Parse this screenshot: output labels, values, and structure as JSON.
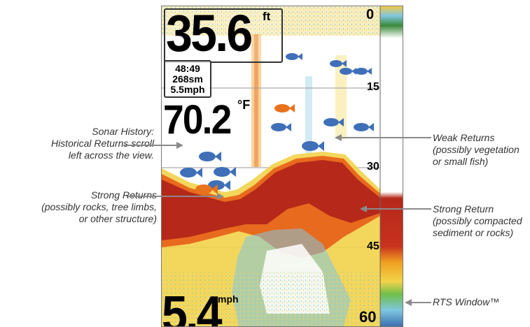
{
  "display": {
    "depth_value": "35.6",
    "depth_unit": "ft",
    "info_lines": [
      "48:49",
      "268sm",
      "5.5mph"
    ],
    "temp_value": "70.2",
    "temp_unit": "°F",
    "speed_value": "5.4",
    "speed_unit": "mph",
    "depth_scale": [
      "0",
      "15",
      "30",
      "45",
      "60"
    ]
  },
  "callouts": {
    "sonar_history": [
      "Sonar History:",
      "Historical Returns scroll",
      "left across the view."
    ],
    "strong_returns": [
      "Strong Returns",
      "(possibly rocks, tree limbs,",
      "or other structure)"
    ],
    "weak_returns": [
      "Weak Returns",
      "(possibly vegetation",
      "or small fish)"
    ],
    "strong_return": [
      "Strong Return",
      "(possibly compacted",
      "sediment or rocks)"
    ],
    "rts_window": [
      "RTS Window™"
    ]
  },
  "colors": {
    "strong": "#b5281a",
    "medium": "#e86a1e",
    "weak": "#f2d34a",
    "faint": "#7fc6e0",
    "fish_blue": "#3f6fb8",
    "fish_orange": "#e8731c",
    "callout_line": "#8a8a8a"
  }
}
